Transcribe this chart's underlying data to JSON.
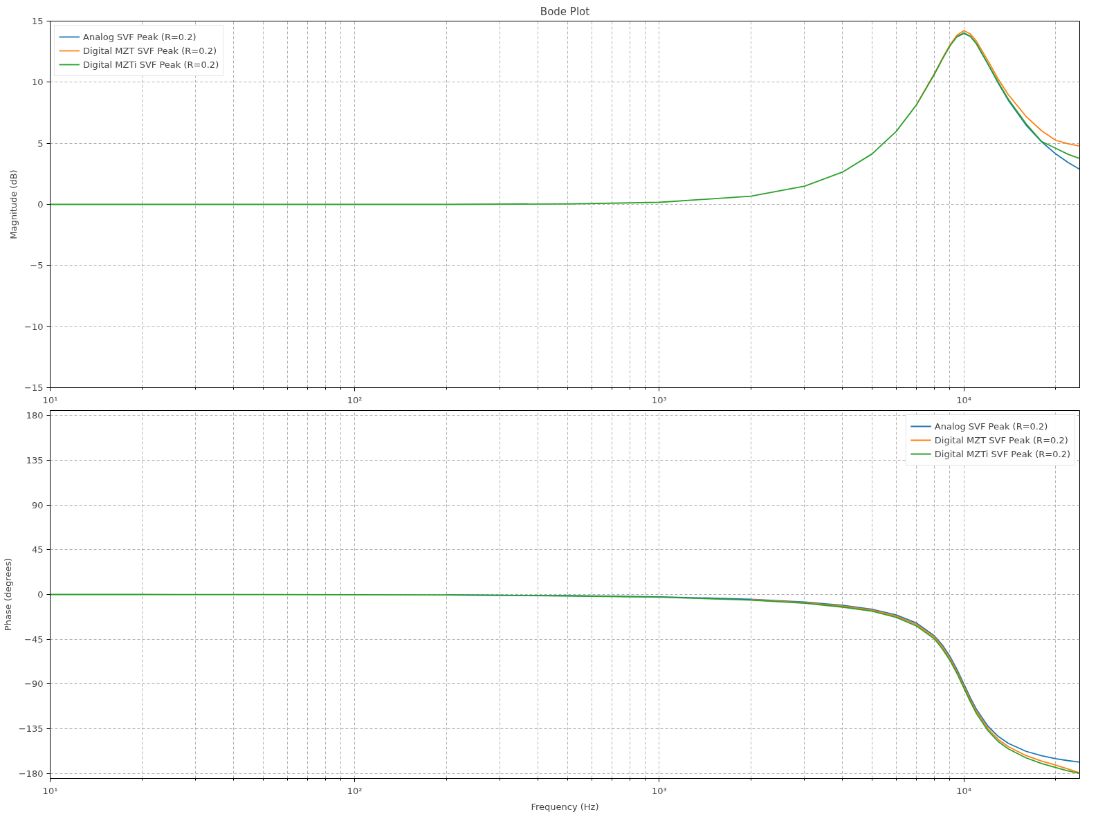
{
  "chart_data": [
    {
      "type": "line",
      "title": "Bode Plot",
      "ylabel": "Magnitude (dB)",
      "log": "x",
      "grid": true,
      "legend": "top left",
      "line_style": "solid",
      "marker": "none",
      "x": [
        10,
        20,
        50,
        100,
        200,
        500,
        1000,
        2000,
        3000,
        4000,
        5000,
        6000,
        7000,
        8000,
        8500,
        9000,
        9500,
        10000,
        10500,
        11000,
        12000,
        13000,
        14000,
        16000,
        18000,
        20000,
        22000,
        24000
      ],
      "xlim": [
        10,
        24000
      ],
      "xticks": [
        {
          "value": 10,
          "label": "10¹"
        },
        {
          "value": 20,
          "label": null
        },
        {
          "value": 30,
          "label": null
        },
        {
          "value": 40,
          "label": null
        },
        {
          "value": 50,
          "label": null
        },
        {
          "value": 60,
          "label": null
        },
        {
          "value": 70,
          "label": null
        },
        {
          "value": 80,
          "label": null
        },
        {
          "value": 90,
          "label": null
        },
        {
          "value": 100,
          "label": "10²"
        },
        {
          "value": 200,
          "label": null
        },
        {
          "value": 300,
          "label": null
        },
        {
          "value": 400,
          "label": null
        },
        {
          "value": 500,
          "label": null
        },
        {
          "value": 600,
          "label": null
        },
        {
          "value": 700,
          "label": null
        },
        {
          "value": 800,
          "label": null
        },
        {
          "value": 900,
          "label": null
        },
        {
          "value": 1000,
          "label": "10³"
        },
        {
          "value": 2000,
          "label": null
        },
        {
          "value": 3000,
          "label": null
        },
        {
          "value": 4000,
          "label": null
        },
        {
          "value": 5000,
          "label": null
        },
        {
          "value": 6000,
          "label": null
        },
        {
          "value": 7000,
          "label": null
        },
        {
          "value": 8000,
          "label": null
        },
        {
          "value": 9000,
          "label": null
        },
        {
          "value": 10000,
          "label": "10⁴"
        },
        {
          "value": 20000,
          "label": null
        }
      ],
      "ylim": [
        -15,
        15
      ],
      "yticks": [
        {
          "value": -15,
          "label": "−15"
        },
        {
          "value": -10,
          "label": "−10"
        },
        {
          "value": -5,
          "label": "−5"
        },
        0,
        5,
        10,
        15
      ],
      "series": [
        {
          "name": "Analog SVF Peak (R=0.2)",
          "color": "#1f77b4",
          "values": [
            null,
            null,
            null,
            null,
            null,
            null,
            null,
            null,
            null,
            null,
            null,
            null,
            null,
            null,
            null,
            null,
            13.72,
            13.98,
            13.74,
            13.13,
            11.47,
            9.87,
            8.51,
            6.49,
            5.12,
            4.14,
            3.42,
            2.87
          ]
        },
        {
          "name": "Digital MZT SVF Peak (R=0.2)",
          "color": "#ff7f0e",
          "values": [
            null,
            null,
            null,
            null,
            null,
            null,
            null,
            null,
            null,
            null,
            null,
            null,
            8.2,
            10.7,
            11.95,
            13.05,
            13.85,
            14.22,
            13.95,
            13.35,
            11.75,
            10.2,
            8.97,
            7.2,
            6.03,
            5.25,
            4.96,
            4.77
          ]
        },
        {
          "name": "Digital MZTi SVF Peak (R=0.2)",
          "color": "#2ca02c",
          "values": [
            0,
            0,
            0,
            0,
            0,
            0.04,
            0.17,
            0.67,
            1.49,
            2.65,
            4.14,
            5.98,
            8.17,
            10.64,
            11.88,
            12.96,
            13.74,
            14.03,
            13.77,
            13.15,
            11.5,
            9.95,
            8.6,
            6.6,
            5.15,
            4.6,
            4.1,
            3.76
          ]
        }
      ]
    },
    {
      "type": "line",
      "xlabel": "Frequency (Hz)",
      "ylabel": "Phase (degrees)",
      "log": "x",
      "grid": true,
      "legend": "top right",
      "line_style": "solid",
      "marker": "none",
      "x": [
        10,
        20,
        50,
        100,
        200,
        500,
        1000,
        2000,
        3000,
        4000,
        5000,
        6000,
        7000,
        8000,
        8500,
        9000,
        9500,
        10000,
        10500,
        11000,
        12000,
        13000,
        14000,
        16000,
        18000,
        20000,
        22000,
        24000
      ],
      "xlim": [
        10,
        24000
      ],
      "xticks": [
        {
          "value": 10,
          "label": "10¹"
        },
        {
          "value": 20,
          "label": null
        },
        {
          "value": 30,
          "label": null
        },
        {
          "value": 40,
          "label": null
        },
        {
          "value": 50,
          "label": null
        },
        {
          "value": 60,
          "label": null
        },
        {
          "value": 70,
          "label": null
        },
        {
          "value": 80,
          "label": null
        },
        {
          "value": 90,
          "label": null
        },
        {
          "value": 100,
          "label": "10²"
        },
        {
          "value": 200,
          "label": null
        },
        {
          "value": 300,
          "label": null
        },
        {
          "value": 400,
          "label": null
        },
        {
          "value": 500,
          "label": null
        },
        {
          "value": 600,
          "label": null
        },
        {
          "value": 700,
          "label": null
        },
        {
          "value": 800,
          "label": null
        },
        {
          "value": 900,
          "label": null
        },
        {
          "value": 1000,
          "label": "10³"
        },
        {
          "value": 2000,
          "label": null
        },
        {
          "value": 3000,
          "label": null
        },
        {
          "value": 4000,
          "label": null
        },
        {
          "value": 5000,
          "label": null
        },
        {
          "value": 6000,
          "label": null
        },
        {
          "value": 7000,
          "label": null
        },
        {
          "value": 8000,
          "label": null
        },
        {
          "value": 9000,
          "label": null
        },
        {
          "value": 10000,
          "label": "10⁴"
        },
        {
          "value": 20000,
          "label": null
        }
      ],
      "ylim": [
        -185,
        185
      ],
      "yticks": [
        {
          "value": -180,
          "label": "−180"
        },
        {
          "value": -135,
          "label": "−135"
        },
        {
          "value": -90,
          "label": "−90"
        },
        {
          "value": -45,
          "label": "−45"
        },
        0,
        45,
        90,
        135,
        180
      ],
      "series": [
        {
          "name": "Analog SVF Peak (R=0.2)",
          "color": "#1f77b4",
          "values": [
            null,
            null,
            null,
            null,
            -0.5,
            -1.2,
            -2.3,
            -4.8,
            -7.5,
            -10.8,
            -14.9,
            -20.6,
            -28.8,
            -41.6,
            -50.8,
            -62.2,
            -75.6,
            -90,
            -103.7,
            -115.5,
            -132.5,
            -143.0,
            -149.7,
            -157.7,
            -162.2,
            -165.1,
            -167.1,
            -168.6
          ]
        },
        {
          "name": "Digital MZT SVF Peak (R=0.2)",
          "color": "#ff7f0e",
          "values": [
            null,
            null,
            null,
            null,
            null,
            null,
            null,
            -5.2,
            -8.2,
            -11.8,
            -15.8,
            -21.8,
            -30.3,
            -42.8,
            -52.8,
            -64.2,
            -77.6,
            -92,
            -105.8,
            -117.8,
            -135.0,
            -146.0,
            -153.0,
            -162.0,
            -167.5,
            -171.5,
            -175.5,
            -179.3
          ]
        },
        {
          "name": "Digital MZTi SVF Peak (R=0.2)",
          "color": "#2ca02c",
          "values": [
            0,
            0,
            -0.1,
            -0.3,
            -0.5,
            -1.4,
            -2.7,
            -5.6,
            -8.8,
            -12.7,
            -16.8,
            -23.0,
            -31.8,
            -44.5,
            -54.8,
            -66.2,
            -79.6,
            -94,
            -107.8,
            -119.8,
            -137.0,
            -148.2,
            -155.3,
            -164.3,
            -170.0,
            -174.0,
            -177.5,
            -179.8
          ]
        }
      ]
    }
  ]
}
